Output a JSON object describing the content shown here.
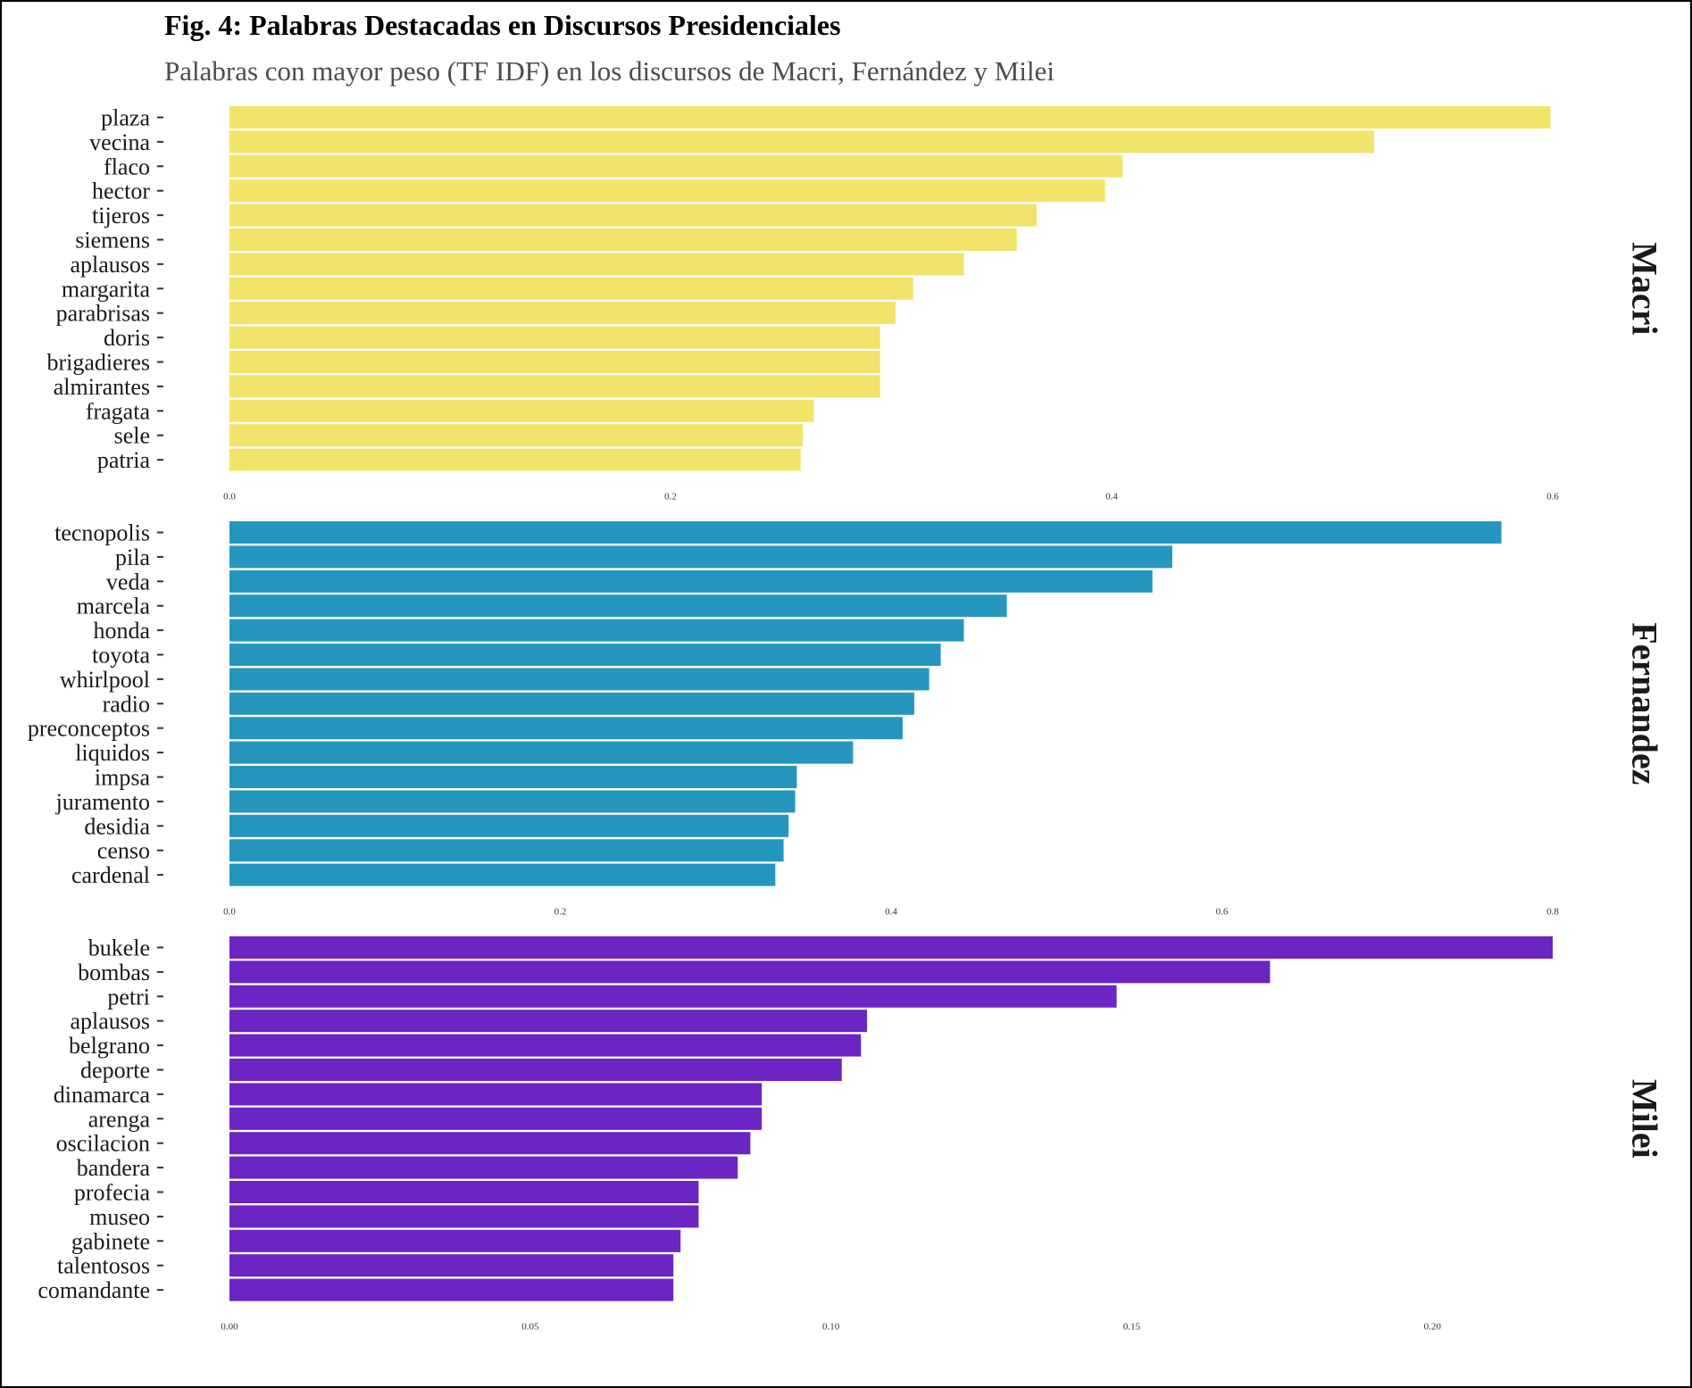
{
  "header": {
    "title": "Fig. 4: Palabras Destacadas en Discursos Presidenciales",
    "subtitle": "Palabras con mayor peso (TF IDF) en los discursos de Macri, Fernández y Milei"
  },
  "chart_data": [
    {
      "type": "bar",
      "orientation": "horizontal",
      "facet": "Macri",
      "color": "#F2E46B",
      "categories": [
        "plaza",
        "vecina",
        "flaco",
        "hector",
        "tijeros",
        "siemens",
        "aplausos",
        "margarita",
        "parabrisas",
        "doris",
        "brigadieres",
        "almirantes",
        "fragata",
        "sele",
        "patria"
      ],
      "values": [
        0.599,
        0.519,
        0.405,
        0.397,
        0.366,
        0.357,
        0.333,
        0.31,
        0.302,
        0.295,
        0.295,
        0.295,
        0.265,
        0.26,
        0.259
      ],
      "xlim": [
        0,
        0.6
      ],
      "ticks": [
        0.0,
        0.2,
        0.4,
        0.6
      ],
      "tick_labels": [
        "0.0",
        "0.2",
        "0.4",
        "0.6"
      ],
      "grid": false
    },
    {
      "type": "bar",
      "orientation": "horizontal",
      "facet": "Fernandez",
      "color": "#2596BE",
      "categories": [
        "tecnopolis",
        "pila",
        "veda",
        "marcela",
        "honda",
        "toyota",
        "whirlpool",
        "radio",
        "preconceptos",
        "liquidos",
        "impsa",
        "juramento",
        "desidia",
        "censo",
        "cardenal"
      ],
      "values": [
        0.769,
        0.57,
        0.558,
        0.47,
        0.444,
        0.43,
        0.423,
        0.414,
        0.407,
        0.377,
        0.343,
        0.342,
        0.338,
        0.335,
        0.33
      ],
      "xlim": [
        0,
        0.8
      ],
      "ticks": [
        0.0,
        0.2,
        0.4,
        0.6,
        0.8
      ],
      "tick_labels": [
        "0.0",
        "0.2",
        "0.4",
        "0.6",
        "0.8"
      ],
      "grid": false
    },
    {
      "type": "bar",
      "orientation": "horizontal",
      "facet": "Milei",
      "color": "#6C24C2",
      "categories": [
        "bukele",
        "bombas",
        "petri",
        "aplausos",
        "belgrano",
        "deporte",
        "dinamarca",
        "arenga",
        "oscilacion",
        "bandera",
        "profecia",
        "museo",
        "gabinete",
        "talentosos",
        "comandante"
      ],
      "values": [
        0.22,
        0.173,
        0.1475,
        0.106,
        0.105,
        0.1018,
        0.0885,
        0.0885,
        0.0866,
        0.0845,
        0.078,
        0.078,
        0.075,
        0.0738,
        0.0738
      ],
      "xlim": [
        0,
        0.22
      ],
      "ticks": [
        0.0,
        0.05,
        0.1,
        0.15,
        0.2
      ],
      "tick_labels": [
        "0.00",
        "0.05",
        "0.10",
        "0.15",
        "0.20"
      ],
      "grid": false
    }
  ]
}
